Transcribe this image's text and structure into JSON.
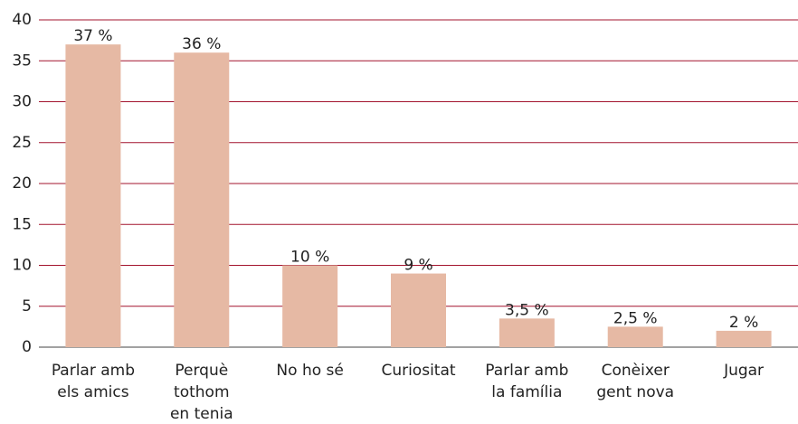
{
  "chart_data": {
    "type": "bar",
    "categories": [
      "Parlar amb\nels amics",
      "Perquè\ntothom\nen tenia",
      "No ho sé",
      "Curiositat",
      "Parlar amb\nla família",
      "Conèixer\ngent nova",
      "Jugar"
    ],
    "values": [
      37,
      36,
      10,
      9,
      3.5,
      2.5,
      2
    ],
    "value_labels": [
      "37 %",
      "36 %",
      "10 %",
      "9 %",
      "3,5 %",
      "2,5 %",
      "2 %"
    ],
    "color": "#e6b9a4",
    "ylim": [
      0,
      40
    ],
    "yticks": [
      0,
      5,
      10,
      15,
      20,
      25,
      30,
      35,
      40
    ],
    "grid": true
  }
}
